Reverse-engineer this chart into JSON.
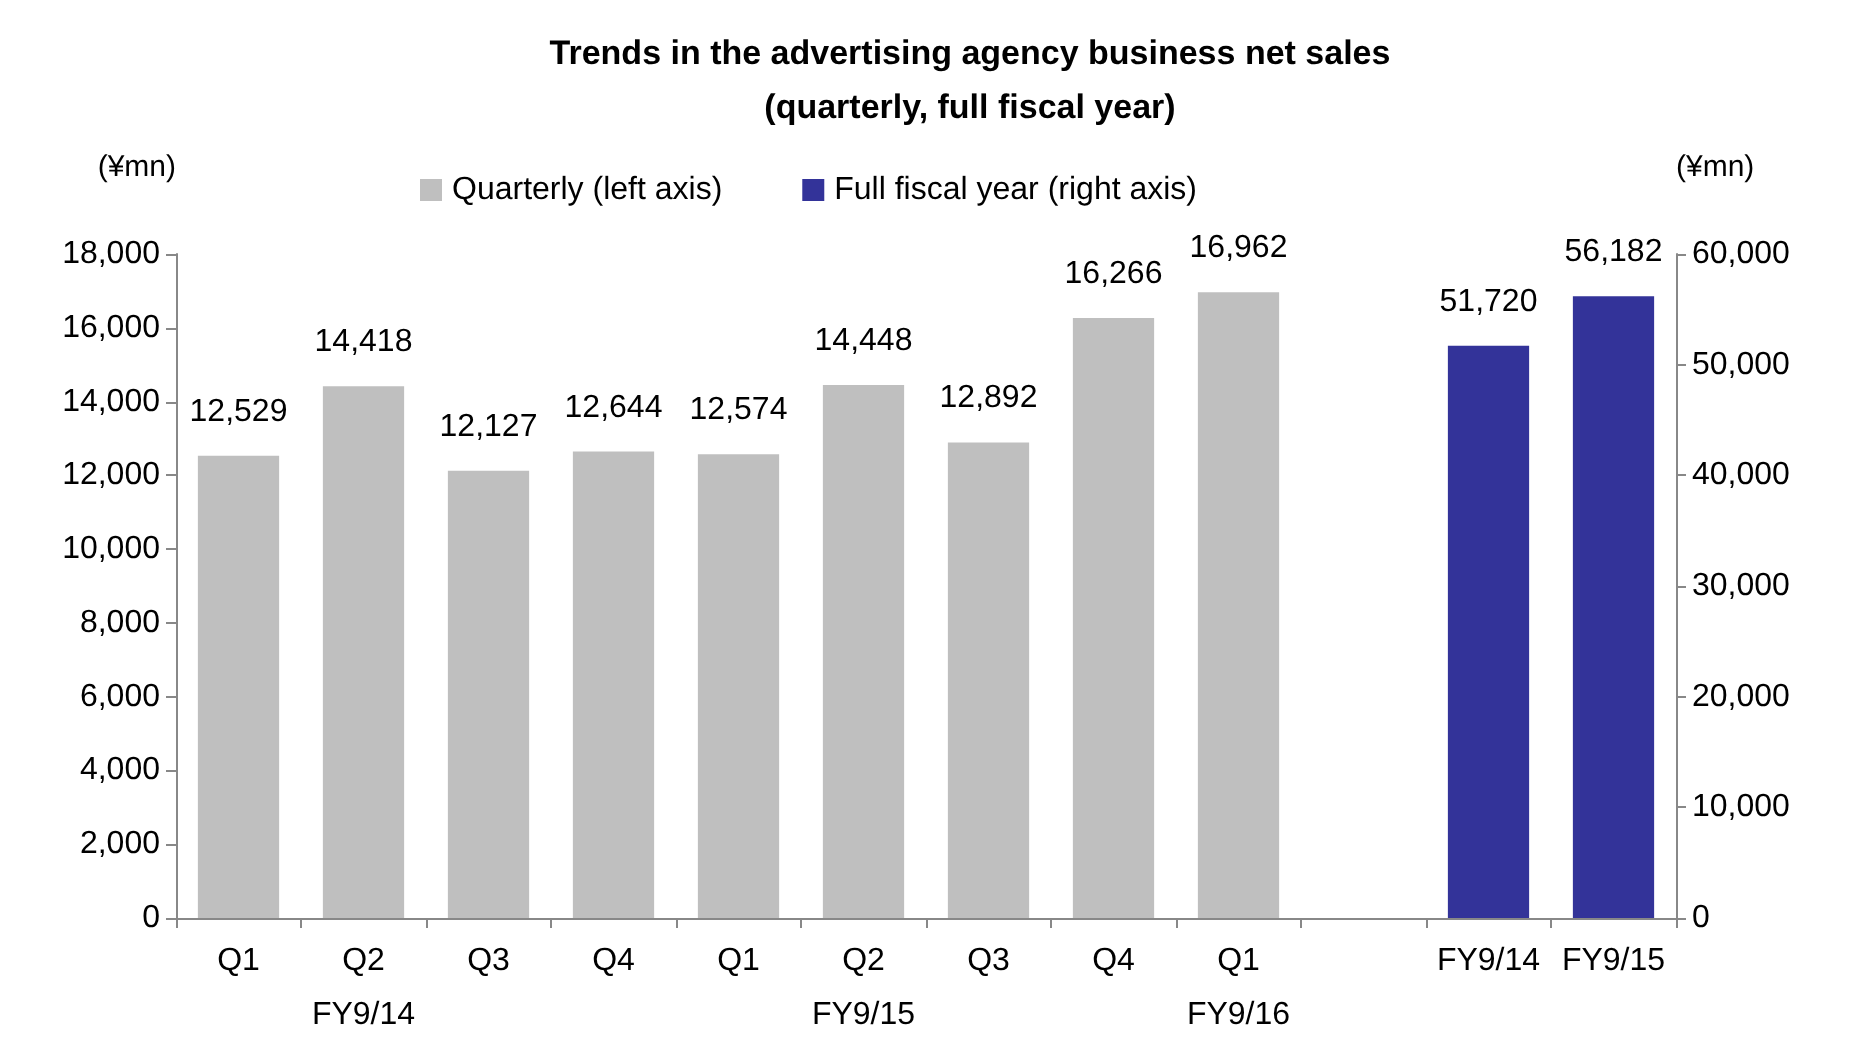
{
  "chart_data": {
    "type": "bar",
    "title": "Trends in the advertising agency business net sales\n(quarterly, full fiscal year)",
    "ylabel": "(¥mn)",
    "y2label": "(¥mn)",
    "categories": [
      "Q1",
      "Q2\nFY9/14",
      "Q3",
      "Q4",
      "Q1",
      "Q2\nFY9/15",
      "Q3",
      "Q4",
      "Q1\nFY9/16",
      null,
      "FY9/14",
      "FY9/15"
    ],
    "series": [
      {
        "name": "Quarterly (left axis)",
        "color": "#bfbfbf",
        "values": [
          12529,
          14418,
          12127,
          12644,
          12574,
          14448,
          12892,
          16266,
          16962,
          null,
          null,
          null
        ],
        "value_labels": [
          "12,529",
          "14,418",
          "12,127",
          "12,644",
          "12,574",
          "14,448",
          "12,892",
          "16,266",
          "16,962",
          null,
          null,
          null
        ]
      },
      {
        "name": "Full fiscal year (right axis)",
        "color": "#333399",
        "axis": "y2",
        "values": [
          null,
          null,
          null,
          null,
          null,
          null,
          null,
          null,
          null,
          null,
          51720,
          56182
        ],
        "value_labels": [
          null,
          null,
          null,
          null,
          null,
          null,
          null,
          null,
          null,
          null,
          "51,720",
          "56,182"
        ]
      }
    ],
    "ylim": [
      0,
      18000
    ],
    "yticks": [
      0,
      {
        "value": 2000,
        "label": "2,000"
      },
      {
        "value": 4000,
        "label": "4,000"
      },
      {
        "value": 6000,
        "label": "6,000"
      },
      {
        "value": 8000,
        "label": "8,000"
      },
      {
        "value": 10000,
        "label": "10,000"
      },
      {
        "value": 12000,
        "label": "12,000"
      },
      {
        "value": 14000,
        "label": "14,000"
      },
      {
        "value": 16000,
        "label": "16,000"
      },
      {
        "value": 18000,
        "label": "18,000"
      }
    ],
    "y2lim": [
      0,
      60000
    ],
    "y2ticks": [
      0,
      {
        "value": 10000,
        "label": "10,000"
      },
      {
        "value": 20000,
        "label": "20,000"
      },
      {
        "value": 30000,
        "label": "30,000"
      },
      {
        "value": 40000,
        "label": "40,000"
      },
      {
        "value": 50000,
        "label": "50,000"
      },
      {
        "value": 60000,
        "label": "60,000"
      }
    ],
    "legend": "top",
    "grid": false
  }
}
